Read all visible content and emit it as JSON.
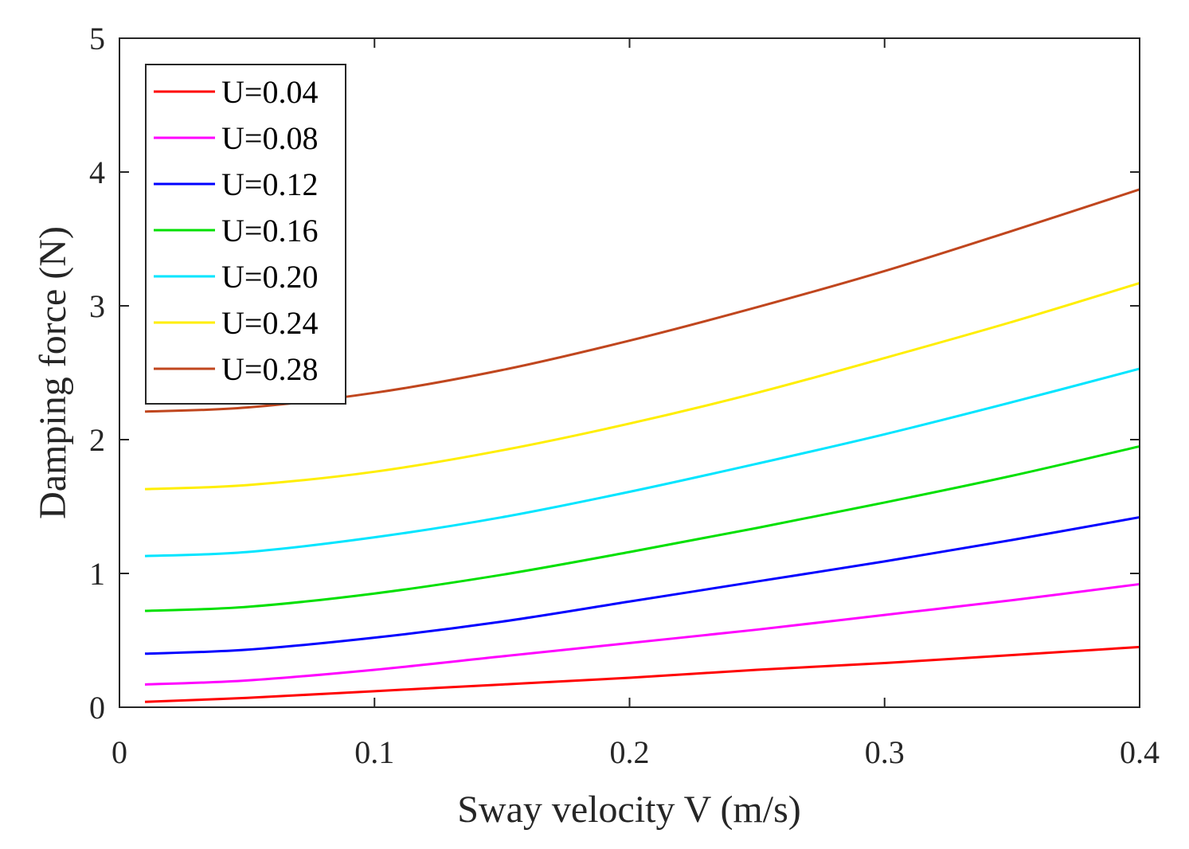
{
  "chart_data": {
    "type": "line",
    "title": "",
    "xlabel": "Sway velocity V (m/s)",
    "ylabel": "Damping force (N)",
    "xlim": [
      0,
      0.4
    ],
    "ylim": [
      0,
      5
    ],
    "xticks": [
      0,
      0.1,
      0.2,
      0.3,
      0.4
    ],
    "xtick_labels": [
      "0",
      "0.1",
      "0.2",
      "0.3",
      "0.4"
    ],
    "yticks": [
      0,
      1,
      2,
      3,
      4,
      5
    ],
    "ytick_labels": [
      "0",
      "1",
      "2",
      "3",
      "4",
      "5"
    ],
    "grid": false,
    "legend_position": "top-left",
    "x": [
      0.01,
      0.05,
      0.1,
      0.15,
      0.2,
      0.25,
      0.3,
      0.35,
      0.4
    ],
    "series": [
      {
        "name": "U=0.04",
        "color": "#ff0000",
        "values": [
          0.04,
          0.07,
          0.12,
          0.17,
          0.22,
          0.28,
          0.33,
          0.39,
          0.45
        ]
      },
      {
        "name": "U=0.08",
        "color": "#ff00ff",
        "values": [
          0.17,
          0.2,
          0.28,
          0.38,
          0.48,
          0.58,
          0.69,
          0.8,
          0.92
        ]
      },
      {
        "name": "U=0.12",
        "color": "#0000ff",
        "values": [
          0.4,
          0.43,
          0.52,
          0.64,
          0.79,
          0.94,
          1.09,
          1.25,
          1.42
        ]
      },
      {
        "name": "U=0.16",
        "color": "#00e000",
        "values": [
          0.72,
          0.75,
          0.85,
          0.99,
          1.16,
          1.34,
          1.53,
          1.73,
          1.95
        ]
      },
      {
        "name": "U=0.20",
        "color": "#00e5ff",
        "values": [
          1.13,
          1.16,
          1.27,
          1.42,
          1.61,
          1.82,
          2.04,
          2.28,
          2.53
        ]
      },
      {
        "name": "U=0.24",
        "color": "#ffee00",
        "values": [
          1.63,
          1.66,
          1.76,
          1.92,
          2.12,
          2.35,
          2.61,
          2.88,
          3.17
        ]
      },
      {
        "name": "U=0.28",
        "color": "#c0461e",
        "values": [
          2.21,
          2.24,
          2.35,
          2.52,
          2.74,
          2.99,
          3.26,
          3.56,
          3.87
        ]
      }
    ]
  }
}
